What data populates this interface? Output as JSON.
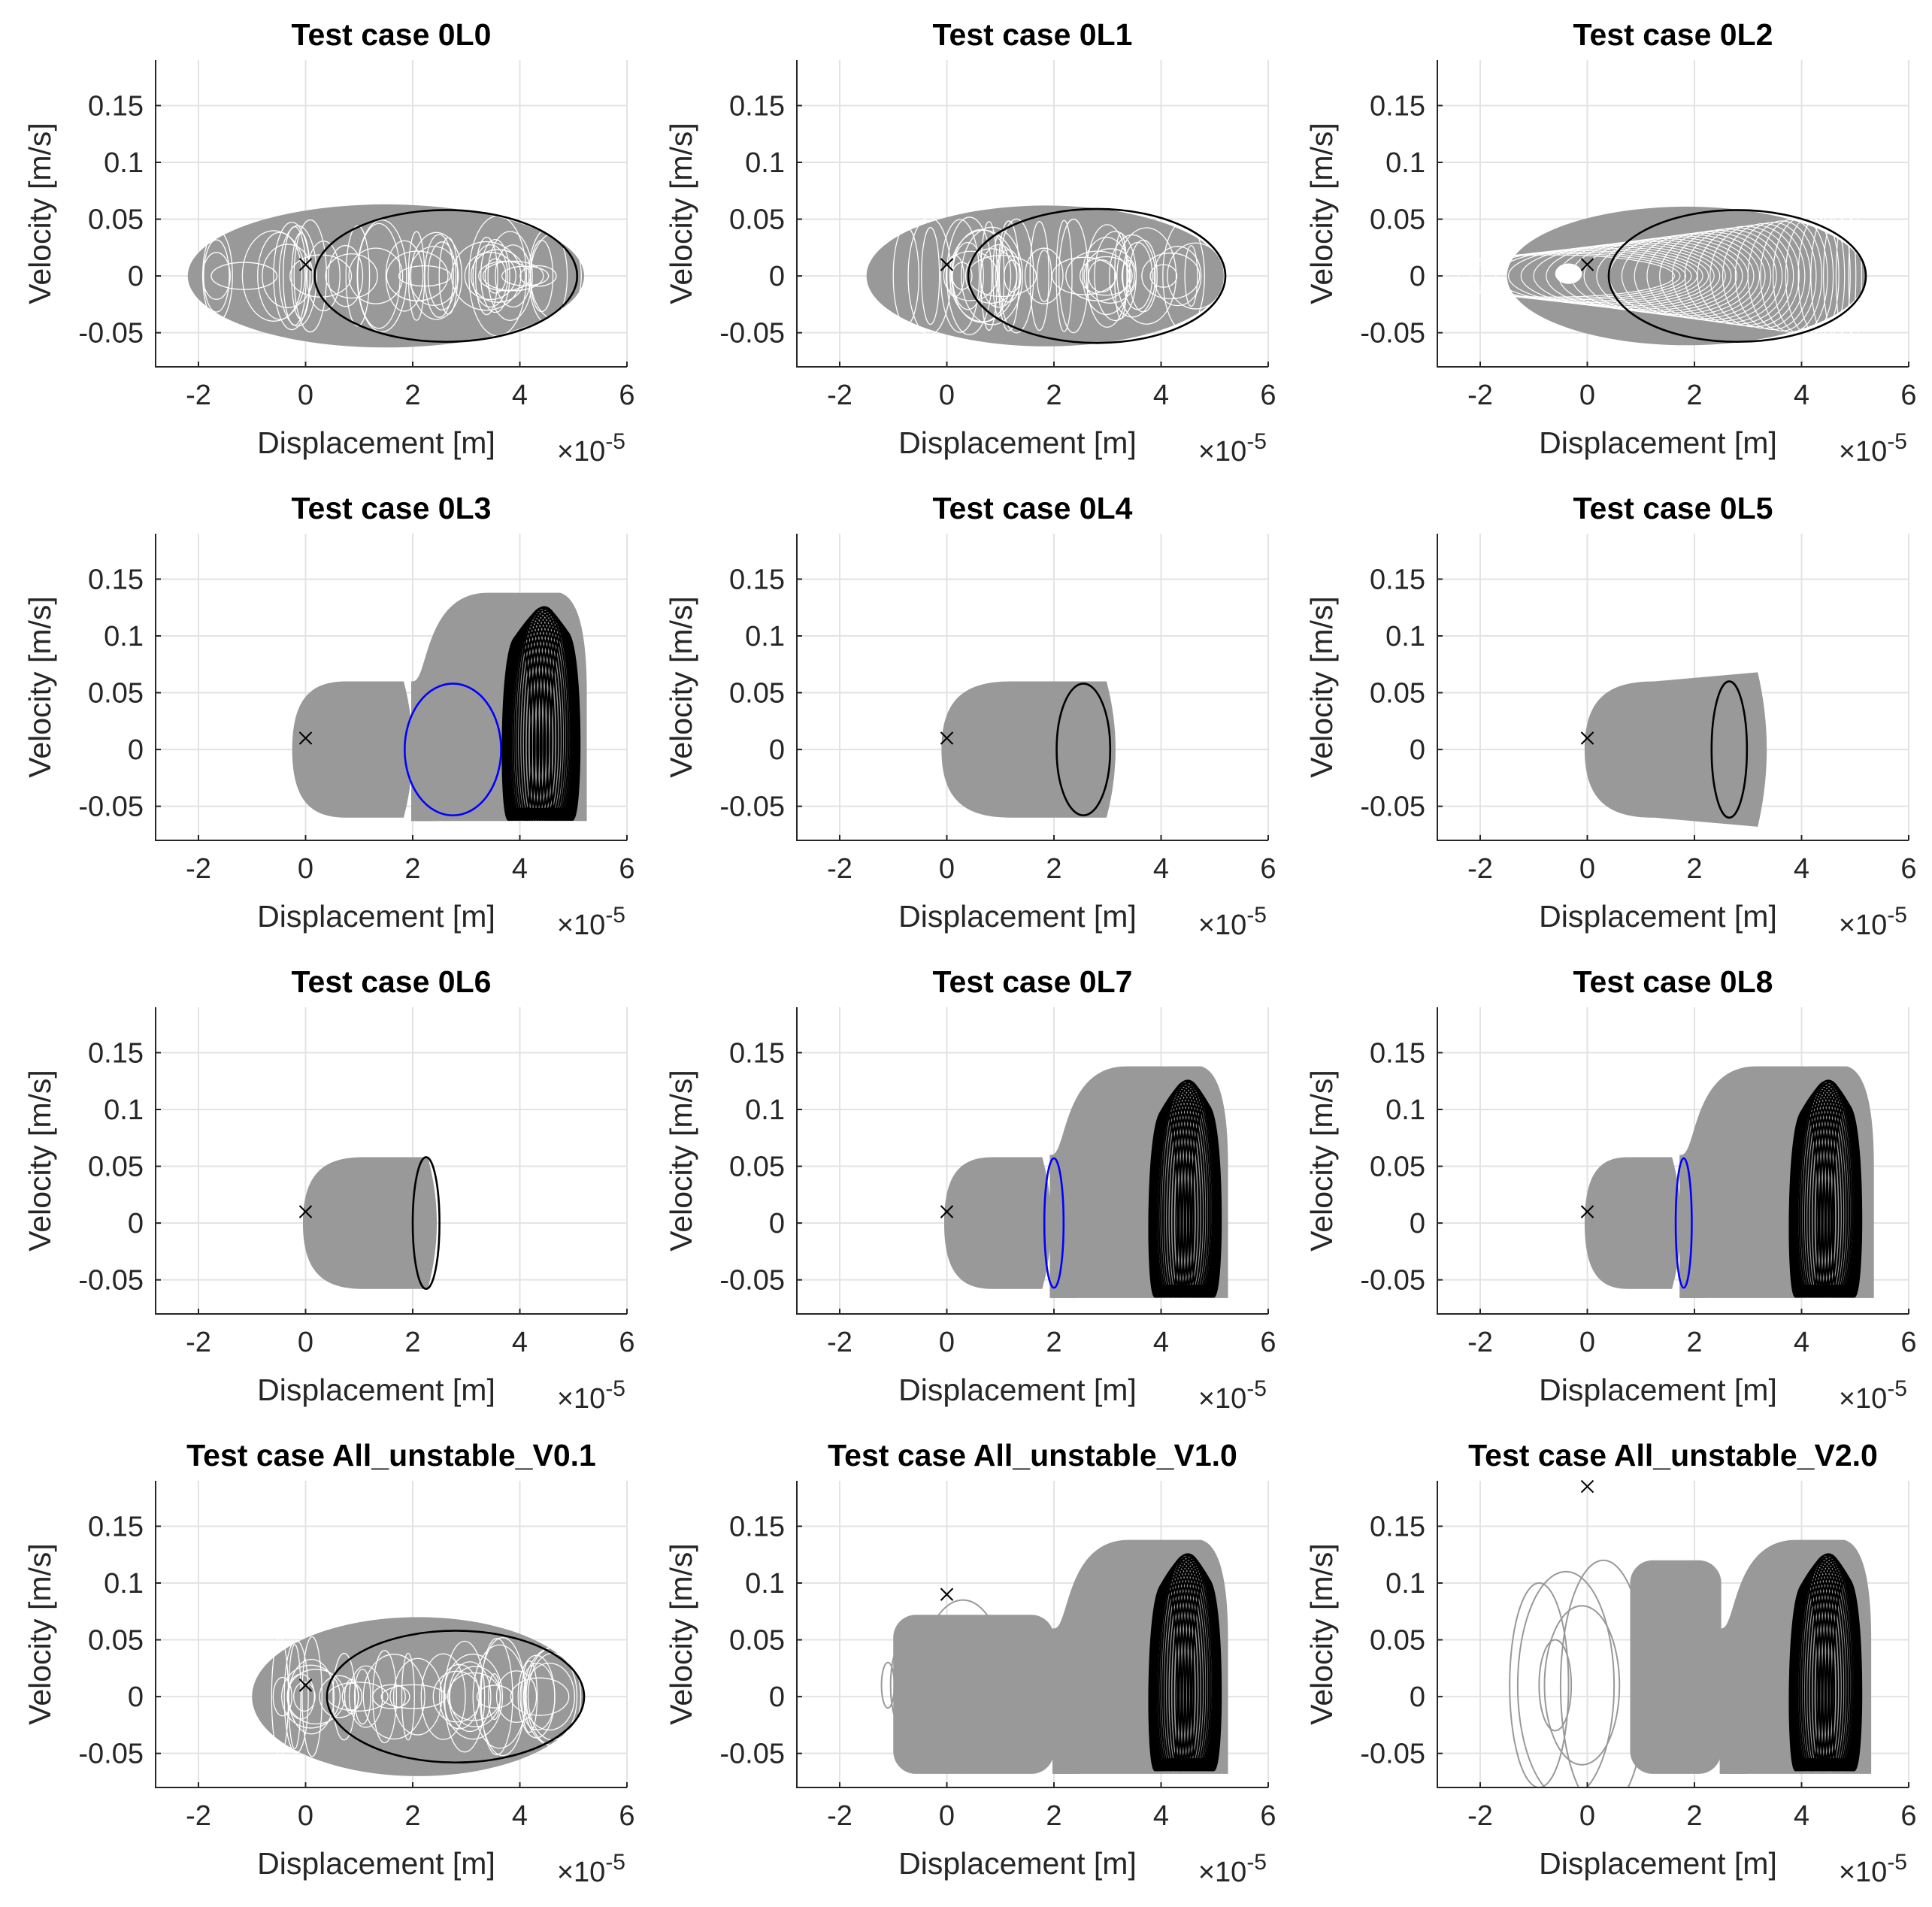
{
  "figure": {
    "layout": "4x3 grid of phase-portrait subplots",
    "colors": {
      "band": "#999999",
      "black_orbit": "#000000",
      "blue_orbit": "#0000ff",
      "grid": "#e3e3e3",
      "axis": "#262626"
    }
  },
  "chart_data": [
    {
      "type": "scatter",
      "title": "Test case 0L0",
      "xlabel": "Displacement [m]",
      "ylabel": "Velocity [m/s]",
      "x_exponent": "×10",
      "x_exponent_power": "-5",
      "xlim": [
        -2.8,
        6
      ],
      "ylim": [
        -0.08,
        0.19
      ],
      "xticks": [
        -2,
        0,
        2,
        4,
        6
      ],
      "xtick_labels": [
        "-2",
        "0",
        "2",
        "4",
        "6"
      ],
      "yticks": [
        -0.05,
        0,
        0.05,
        0.1,
        0.15
      ],
      "ytick_labels": [
        "-0.05",
        "0",
        "0.05",
        "0.1",
        "0.15"
      ],
      "grid": true,
      "marker": {
        "x": 0,
        "y": 0.01,
        "symbol": "x"
      },
      "bands": [
        {
          "kind": "ring_cloud",
          "x_min": -2.2,
          "x_max": 5.2,
          "v_amp": 0.063
        }
      ],
      "orbits": [
        {
          "color": "black",
          "center_x": 2.62,
          "semi_x": 2.45,
          "semi_v": 0.058
        }
      ]
    },
    {
      "type": "scatter",
      "title": "Test case 0L1",
      "xlabel": "Displacement [m]",
      "ylabel": "Velocity [m/s]",
      "x_exponent": "×10",
      "x_exponent_power": "-5",
      "xlim": [
        -2.8,
        6
      ],
      "ylim": [
        -0.08,
        0.19
      ],
      "xticks": [
        -2,
        0,
        2,
        4,
        6
      ],
      "xtick_labels": [
        "-2",
        "0",
        "2",
        "4",
        "6"
      ],
      "yticks": [
        -0.05,
        0,
        0.05,
        0.1,
        0.15
      ],
      "ytick_labels": [
        "-0.05",
        "0",
        "0.05",
        "0.1",
        "0.15"
      ],
      "grid": true,
      "marker": {
        "x": 0,
        "y": 0.01,
        "symbol": "x"
      },
      "bands": [
        {
          "kind": "ring_cloud",
          "x_min": -1.5,
          "x_max": 5.2,
          "v_amp": 0.062
        }
      ],
      "orbits": [
        {
          "color": "black",
          "center_x": 2.8,
          "semi_x": 2.4,
          "semi_v": 0.059
        }
      ]
    },
    {
      "type": "scatter",
      "title": "Test case 0L2",
      "xlabel": "Displacement [m]",
      "ylabel": "Velocity [m/s]",
      "x_exponent": "×10",
      "x_exponent_power": "-5",
      "xlim": [
        -2.8,
        6
      ],
      "ylim": [
        -0.08,
        0.19
      ],
      "xticks": [
        -2,
        0,
        2,
        4,
        6
      ],
      "xtick_labels": [
        "-2",
        "0",
        "2",
        "4",
        "6"
      ],
      "yticks": [
        -0.05,
        0,
        0.05,
        0.1,
        0.15
      ],
      "ytick_labels": [
        "-0.05",
        "0",
        "0.05",
        "0.1",
        "0.15"
      ],
      "grid": true,
      "marker": {
        "x": 0,
        "y": 0.01,
        "symbol": "x"
      },
      "bands": [
        {
          "kind": "ring_nested",
          "x_min": -1.5,
          "x_max": 5.2,
          "v_amp": 0.061
        }
      ],
      "orbits": [
        {
          "color": "black",
          "center_x": 2.8,
          "semi_x": 2.4,
          "semi_v": 0.058
        }
      ]
    },
    {
      "type": "scatter",
      "title": "Test case 0L3",
      "xlabel": "Displacement [m]",
      "ylabel": "Velocity [m/s]",
      "x_exponent": "×10",
      "x_exponent_power": "-5",
      "xlim": [
        -2.8,
        6
      ],
      "ylim": [
        -0.08,
        0.19
      ],
      "xticks": [
        -2,
        0,
        2,
        4,
        6
      ],
      "xtick_labels": [
        "-2",
        "0",
        "2",
        "4",
        "6"
      ],
      "yticks": [
        -0.05,
        0,
        0.05,
        0.1,
        0.15
      ],
      "ytick_labels": [
        "-0.05",
        "0",
        "0.05",
        "0.1",
        "0.15"
      ],
      "grid": true,
      "marker": {
        "x": 0,
        "y": 0.01,
        "symbol": "x"
      },
      "bands": [
        {
          "kind": "bullet",
          "x_start": -0.25,
          "x_end": 2.0,
          "v_amp": 0.06
        },
        {
          "kind": "bulge",
          "x_start": 2.0,
          "x_end": 5.25,
          "v_low": -0.063,
          "v_high": 0.138
        }
      ],
      "orbits": [
        {
          "color": "blue",
          "center_x": 2.75,
          "semi_x": 0.9,
          "semi_v": 0.058
        },
        {
          "color": "black",
          "kind": "attractor",
          "x_min": 3.6,
          "x_max": 5.2,
          "v_low": -0.062,
          "v_high": 0.136
        }
      ]
    },
    {
      "type": "scatter",
      "title": "Test case 0L4",
      "xlabel": "Displacement [m]",
      "ylabel": "Velocity [m/s]",
      "x_exponent": "×10",
      "x_exponent_power": "-5",
      "xlim": [
        -2.8,
        6
      ],
      "ylim": [
        -0.08,
        0.19
      ],
      "xticks": [
        -2,
        0,
        2,
        4,
        6
      ],
      "xtick_labels": [
        "-2",
        "0",
        "2",
        "4",
        "6"
      ],
      "yticks": [
        -0.05,
        0,
        0.05,
        0.1,
        0.15
      ],
      "ytick_labels": [
        "-0.05",
        "0",
        "0.05",
        "0.1",
        "0.15"
      ],
      "grid": true,
      "marker": {
        "x": 0,
        "y": 0.01,
        "symbol": "x"
      },
      "bands": [
        {
          "kind": "bullet",
          "x_start": -0.1,
          "x_end": 3.15,
          "v_amp": 0.06
        }
      ],
      "orbits": [
        {
          "color": "black",
          "center_x": 2.55,
          "semi_x": 0.5,
          "semi_v": 0.058
        }
      ]
    },
    {
      "type": "scatter",
      "title": "Test case 0L5",
      "xlabel": "Displacement [m]",
      "ylabel": "Velocity [m/s]",
      "x_exponent": "×10",
      "x_exponent_power": "-5",
      "xlim": [
        -2.8,
        6
      ],
      "ylim": [
        -0.08,
        0.19
      ],
      "xticks": [
        -2,
        0,
        2,
        4,
        6
      ],
      "xtick_labels": [
        "-2",
        "0",
        "2",
        "4",
        "6"
      ],
      "yticks": [
        -0.05,
        0,
        0.05,
        0.1,
        0.15
      ],
      "ytick_labels": [
        "-0.05",
        "0",
        "0.05",
        "0.1",
        "0.15"
      ],
      "grid": true,
      "marker": {
        "x": 0,
        "y": 0.01,
        "symbol": "x"
      },
      "bands": [
        {
          "kind": "bullet_flare",
          "x_start": -0.05,
          "x_end": 3.35,
          "v_amp": 0.06,
          "v_end": 0.068
        }
      ],
      "orbits": [
        {
          "color": "black",
          "center_x": 2.65,
          "semi_x": 0.33,
          "semi_v": 0.06
        }
      ]
    },
    {
      "type": "scatter",
      "title": "Test case 0L6",
      "xlabel": "Displacement [m]",
      "ylabel": "Velocity [m/s]",
      "x_exponent": "×10",
      "x_exponent_power": "-5",
      "xlim": [
        -2.8,
        6
      ],
      "ylim": [
        -0.08,
        0.19
      ],
      "xticks": [
        -2,
        0,
        2,
        4,
        6
      ],
      "xtick_labels": [
        "-2",
        "0",
        "2",
        "4",
        "6"
      ],
      "yticks": [
        -0.05,
        0,
        0.05,
        0.1,
        0.15
      ],
      "ytick_labels": [
        "-0.05",
        "0",
        "0.05",
        "0.1",
        "0.15"
      ],
      "grid": true,
      "marker": {
        "x": 0,
        "y": 0.01,
        "symbol": "x"
      },
      "bands": [
        {
          "kind": "bullet",
          "x_start": -0.05,
          "x_end": 2.45,
          "v_amp": 0.058
        }
      ],
      "orbits": [
        {
          "color": "black",
          "center_x": 2.25,
          "semi_x": 0.25,
          "semi_v": 0.058
        }
      ]
    },
    {
      "type": "scatter",
      "title": "Test case 0L7",
      "xlabel": "Displacement [m]",
      "ylabel": "Velocity [m/s]",
      "x_exponent": "×10",
      "x_exponent_power": "-5",
      "xlim": [
        -2.8,
        6
      ],
      "ylim": [
        -0.08,
        0.19
      ],
      "xticks": [
        -2,
        0,
        2,
        4,
        6
      ],
      "xtick_labels": [
        "-2",
        "0",
        "2",
        "4",
        "6"
      ],
      "yticks": [
        -0.05,
        0,
        0.05,
        0.1,
        0.15
      ],
      "ytick_labels": [
        "-0.05",
        "0",
        "0.05",
        "0.1",
        "0.15"
      ],
      "grid": true,
      "marker": {
        "x": 0,
        "y": 0.01,
        "symbol": "x"
      },
      "bands": [
        {
          "kind": "bullet",
          "x_start": -0.05,
          "x_end": 1.95,
          "v_amp": 0.058
        },
        {
          "kind": "bulge",
          "x_start": 1.95,
          "x_end": 5.25,
          "v_low": -0.066,
          "v_high": 0.138
        }
      ],
      "orbits": [
        {
          "color": "blue",
          "center_x": 2.0,
          "semi_x": 0.18,
          "semi_v": 0.057
        },
        {
          "color": "black",
          "kind": "attractor",
          "x_min": 3.7,
          "x_max": 5.2,
          "v_low": -0.065,
          "v_high": 0.136
        }
      ]
    },
    {
      "type": "scatter",
      "title": "Test case 0L8",
      "xlabel": "Displacement [m]",
      "ylabel": "Velocity [m/s]",
      "x_exponent": "×10",
      "x_exponent_power": "-5",
      "xlim": [
        -2.8,
        6
      ],
      "ylim": [
        -0.08,
        0.19
      ],
      "xticks": [
        -2,
        0,
        2,
        4,
        6
      ],
      "xtick_labels": [
        "-2",
        "0",
        "2",
        "4",
        "6"
      ],
      "yticks": [
        -0.05,
        0,
        0.05,
        0.1,
        0.15
      ],
      "ytick_labels": [
        "-0.05",
        "0",
        "0.05",
        "0.1",
        "0.15"
      ],
      "grid": true,
      "marker": {
        "x": 0,
        "y": 0.01,
        "symbol": "x"
      },
      "bands": [
        {
          "kind": "bullet",
          "x_start": -0.05,
          "x_end": 1.75,
          "v_amp": 0.058
        },
        {
          "kind": "bulge",
          "x_start": 1.75,
          "x_end": 5.35,
          "v_low": -0.066,
          "v_high": 0.138
        }
      ],
      "orbits": [
        {
          "color": "blue",
          "center_x": 1.8,
          "semi_x": 0.15,
          "semi_v": 0.057
        },
        {
          "color": "black",
          "kind": "attractor",
          "x_min": 3.7,
          "x_max": 5.2,
          "v_low": -0.065,
          "v_high": 0.136
        }
      ]
    },
    {
      "type": "scatter",
      "title": "Test case All_unstable_V0.1",
      "xlabel": "Displacement [m]",
      "ylabel": "Velocity [m/s]",
      "x_exponent": "×10",
      "x_exponent_power": "-5",
      "xlim": [
        -2.8,
        6
      ],
      "ylim": [
        -0.08,
        0.19
      ],
      "xticks": [
        -2,
        0,
        2,
        4,
        6
      ],
      "xtick_labels": [
        "-2",
        "0",
        "2",
        "4",
        "6"
      ],
      "yticks": [
        -0.05,
        0,
        0.05,
        0.1,
        0.15
      ],
      "ytick_labels": [
        "-0.05",
        "0",
        "0.05",
        "0.1",
        "0.15"
      ],
      "grid": true,
      "marker": {
        "x": 0,
        "y": 0.01,
        "symbol": "x"
      },
      "bands": [
        {
          "kind": "ring_cloud",
          "x_min": -1.0,
          "x_max": 5.2,
          "v_amp": 0.07
        }
      ],
      "orbits": [
        {
          "color": "black",
          "center_x": 2.8,
          "semi_x": 2.4,
          "semi_v": 0.058
        }
      ]
    },
    {
      "type": "scatter",
      "title": "Test case All_unstable_V1.0",
      "xlabel": "Displacement [m]",
      "ylabel": "Velocity [m/s]",
      "x_exponent": "×10",
      "x_exponent_power": "-5",
      "xlim": [
        -2.8,
        6
      ],
      "ylim": [
        -0.08,
        0.19
      ],
      "xticks": [
        -2,
        0,
        2,
        4,
        6
      ],
      "xtick_labels": [
        "-2",
        "0",
        "2",
        "4",
        "6"
      ],
      "yticks": [
        -0.05,
        0,
        0.05,
        0.1,
        0.15
      ],
      "ytick_labels": [
        "-0.05",
        "0",
        "0.05",
        "0.1",
        "0.15"
      ],
      "grid": true,
      "marker": {
        "x": 0,
        "y": 0.09,
        "symbol": "x"
      },
      "bands": [
        {
          "kind": "block",
          "x_start": -1.0,
          "x_end": 2.0,
          "v_low": -0.068,
          "v_high": 0.072
        },
        {
          "kind": "bulge",
          "x_start": 2.0,
          "x_end": 5.25,
          "v_low": -0.068,
          "v_high": 0.138
        }
      ],
      "transient_loops": [
        {
          "center_x": -1.1,
          "semi_x": 0.12,
          "semi_v": 0.02
        },
        {
          "center_x": -0.7,
          "semi_x": 0.35,
          "semi_v": 0.045
        },
        {
          "center_x": -0.3,
          "semi_x": 0.6,
          "semi_v": 0.06
        },
        {
          "center_x": 0.3,
          "semi_x": 0.8,
          "semi_v": 0.075
        }
      ],
      "orbits": [
        {
          "color": "black",
          "kind": "attractor",
          "x_min": 3.7,
          "x_max": 5.2,
          "v_low": -0.065,
          "v_high": 0.136
        }
      ]
    },
    {
      "type": "scatter",
      "title": "Test case All_unstable_V2.0",
      "xlabel": "Displacement [m]",
      "ylabel": "Velocity [m/s]",
      "x_exponent": "×10",
      "x_exponent_power": "-5",
      "xlim": [
        -2.8,
        6
      ],
      "ylim": [
        -0.08,
        0.19
      ],
      "xticks": [
        -2,
        0,
        2,
        4,
        6
      ],
      "xtick_labels": [
        "-2",
        "0",
        "2",
        "4",
        "6"
      ],
      "yticks": [
        -0.05,
        0,
        0.05,
        0.1,
        0.15
      ],
      "ytick_labels": [
        "-0.05",
        "0",
        "0.05",
        "0.1",
        "0.15"
      ],
      "grid": true,
      "marker": {
        "x": 0,
        "y": 0.185,
        "symbol": "x"
      },
      "bands": [
        {
          "kind": "block",
          "x_start": 0.8,
          "x_end": 2.5,
          "v_low": -0.068,
          "v_high": 0.12
        },
        {
          "kind": "bulge",
          "x_start": 2.5,
          "x_end": 5.3,
          "v_low": -0.068,
          "v_high": 0.138
        }
      ],
      "transient_loops": [
        {
          "center_x": -0.9,
          "semi_x": 0.55,
          "semi_v": 0.09
        },
        {
          "center_x": -0.4,
          "semi_x": 0.9,
          "semi_v": 0.1
        },
        {
          "center_x": -0.1,
          "semi_x": 0.7,
          "semi_v": 0.07
        },
        {
          "center_x": 0.3,
          "semi_x": 0.8,
          "semi_v": 0.11
        },
        {
          "center_x": -0.6,
          "semi_x": 0.3,
          "semi_v": 0.04
        }
      ],
      "orbits": [
        {
          "color": "black",
          "kind": "attractor",
          "x_min": 3.7,
          "x_max": 5.2,
          "v_low": -0.065,
          "v_high": 0.136
        }
      ]
    }
  ]
}
